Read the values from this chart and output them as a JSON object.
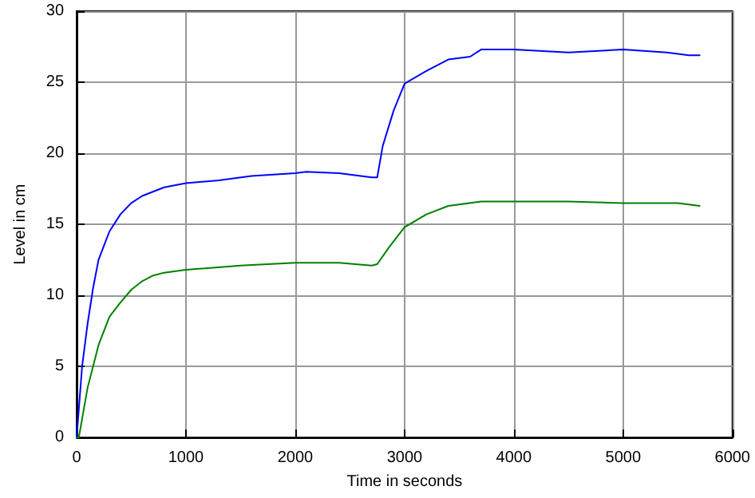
{
  "chart_data": {
    "type": "line",
    "xlabel": "Time in seconds",
    "ylabel": "Level in cm",
    "xlim": [
      0,
      6000
    ],
    "xticks": [
      0,
      1000,
      2000,
      3000,
      4000,
      5000,
      6000
    ],
    "ylim": [
      0,
      30
    ],
    "yticks": [
      0,
      5,
      10,
      15,
      20,
      25,
      30
    ],
    "grid": true,
    "marker": "none",
    "line_style": "solid",
    "series": [
      {
        "color": "#0000ff",
        "x": [
          0,
          50,
          100,
          150,
          200,
          300,
          400,
          500,
          600,
          800,
          1000,
          1300,
          1600,
          2000,
          2100,
          2400,
          2700,
          2750,
          2800,
          2900,
          3000,
          3200,
          3400,
          3600,
          3700,
          4000,
          4500,
          5000,
          5400,
          5600,
          5700
        ],
        "values": [
          0,
          5,
          8,
          10.5,
          12.5,
          14.5,
          15.7,
          16.5,
          17,
          17.6,
          17.9,
          18.1,
          18.4,
          18.6,
          18.7,
          18.6,
          18.3,
          18.3,
          20.5,
          23,
          24.9,
          25.8,
          26.6,
          26.8,
          27.3,
          27.3,
          27.1,
          27.3,
          27.1,
          26.9,
          26.9
        ]
      },
      {
        "color": "#008000",
        "x": [
          0,
          20,
          100,
          200,
          300,
          400,
          500,
          600,
          700,
          800,
          1000,
          1500,
          2000,
          2400,
          2700,
          2750,
          2850,
          2900,
          3000,
          3200,
          3400,
          3700,
          4000,
          4500,
          5000,
          5500,
          5700
        ],
        "values": [
          0,
          0,
          3.5,
          6.5,
          8.5,
          9.5,
          10.4,
          11,
          11.4,
          11.6,
          11.8,
          12.1,
          12.3,
          12.3,
          12.1,
          12.2,
          13.3,
          13.8,
          14.8,
          15.7,
          16.3,
          16.6,
          16.6,
          16.6,
          16.5,
          16.5,
          16.3
        ]
      }
    ]
  }
}
